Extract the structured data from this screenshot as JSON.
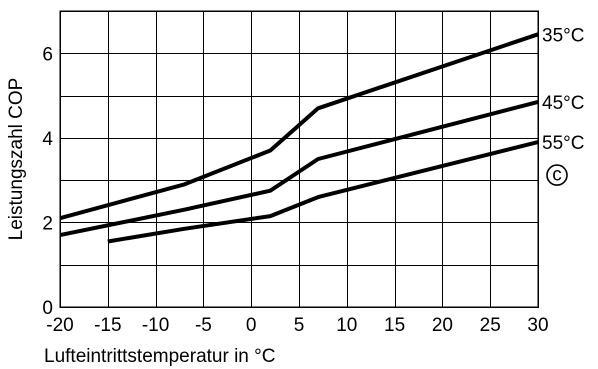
{
  "chart_data": {
    "type": "line",
    "title": "",
    "xlabel": "Lufteintrittstemperatur in °C",
    "ylabel": "Leistungszahl COP",
    "xlim": [
      -20,
      30
    ],
    "ylim": [
      0,
      7
    ],
    "x_ticks": [
      -20,
      -15,
      -10,
      -5,
      0,
      5,
      10,
      15,
      20,
      25,
      30
    ],
    "y_ticks": [
      0,
      2,
      4,
      6
    ],
    "x_grid_step": 5,
    "y_grid_step": 1,
    "grid": true,
    "legend": "right-end labels",
    "series": [
      {
        "name": "35°C",
        "x": [
          -20,
          -7,
          2,
          7,
          30
        ],
        "y": [
          2.1,
          2.9,
          3.7,
          4.7,
          6.45
        ]
      },
      {
        "name": "45°C",
        "x": [
          -20,
          -7,
          2,
          7,
          30
        ],
        "y": [
          1.7,
          2.3,
          2.75,
          3.5,
          4.85
        ]
      },
      {
        "name": "55°C",
        "x": [
          -15,
          -7,
          2,
          7,
          30
        ],
        "y": [
          1.55,
          1.85,
          2.15,
          2.6,
          3.9
        ]
      }
    ],
    "annotations": [
      {
        "text": "c",
        "style": "circled-symbol",
        "attached_to": "55°C"
      }
    ]
  }
}
